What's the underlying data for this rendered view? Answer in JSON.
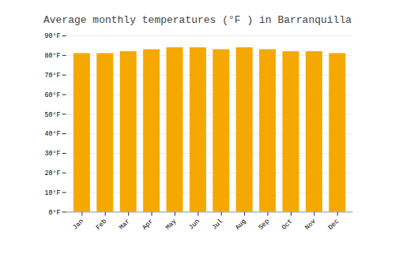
{
  "chart_data": {
    "type": "bar",
    "title": "Average monthly temperatures (°F ) in Barranquilla",
    "categories": [
      "Jan",
      "Feb",
      "Mar",
      "Apr",
      "May",
      "Jun",
      "Jul",
      "Aug",
      "Sep",
      "Oct",
      "Nov",
      "Dec"
    ],
    "values": [
      81,
      81,
      82,
      83,
      84,
      84,
      83,
      84,
      83,
      82,
      82,
      81
    ],
    "color": "#F5A800",
    "ylim": [
      0,
      90
    ],
    "yticks": [
      {
        "value": 0,
        "label": "0°F"
      },
      {
        "value": 10,
        "label": "10°F"
      },
      {
        "value": 20,
        "label": "20°F"
      },
      {
        "value": 30,
        "label": "30°F"
      },
      {
        "value": 40,
        "label": "40°F"
      },
      {
        "value": 50,
        "label": "50°F"
      },
      {
        "value": 60,
        "label": "60°F"
      },
      {
        "value": 70,
        "label": "70°F"
      },
      {
        "value": 80,
        "label": "80°F"
      },
      {
        "value": 90,
        "label": "90°F"
      }
    ],
    "grid": true
  }
}
